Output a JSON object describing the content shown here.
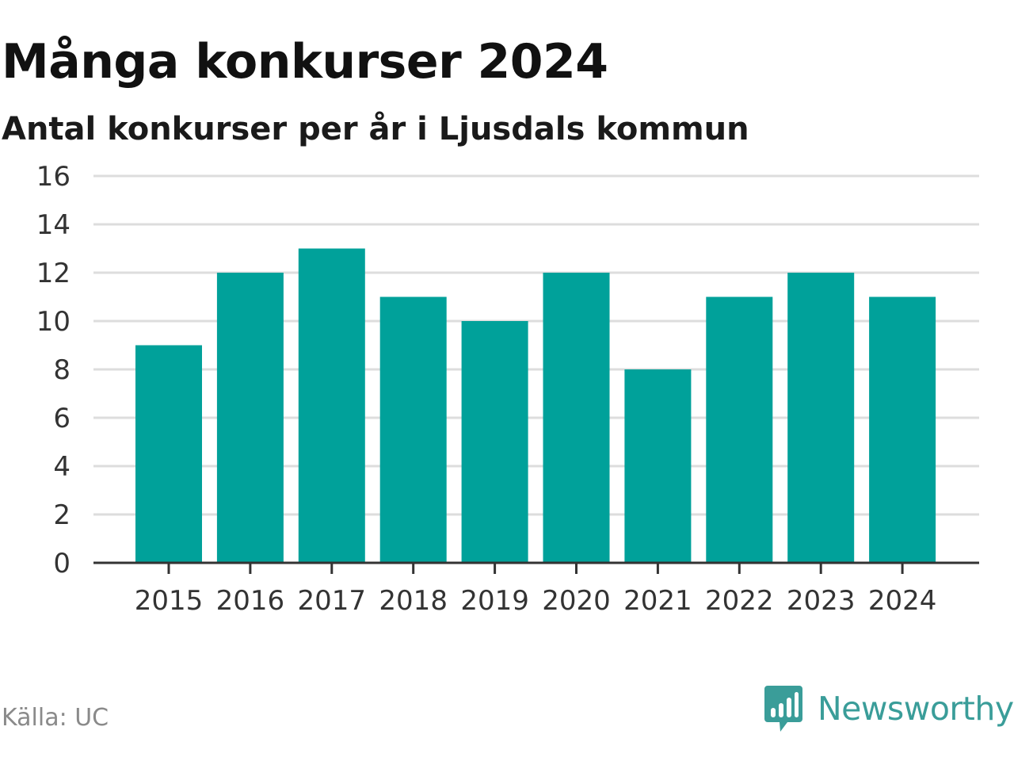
{
  "title": "Många konkurser 2024",
  "subtitle": "Antal konkurser per år i Ljusdals kommun",
  "source": "Källa: UC",
  "brand": {
    "name": "Newsworthy",
    "icon": "newsworthy-logo-icon",
    "color": "#3a9d99"
  },
  "chart_data": {
    "type": "bar",
    "categories": [
      "2015",
      "2016",
      "2017",
      "2018",
      "2019",
      "2020",
      "2021",
      "2022",
      "2023",
      "2024"
    ],
    "values": [
      9,
      12,
      13,
      11,
      10,
      12,
      8,
      11,
      12,
      11
    ],
    "ylim": [
      0,
      16
    ],
    "yticks": [
      0,
      2,
      4,
      6,
      8,
      10,
      12,
      14,
      16
    ],
    "grid": true,
    "legend": "none",
    "bar_color": "#00a19a",
    "grid_color": "#dddddd",
    "axis_color": "#333333"
  }
}
